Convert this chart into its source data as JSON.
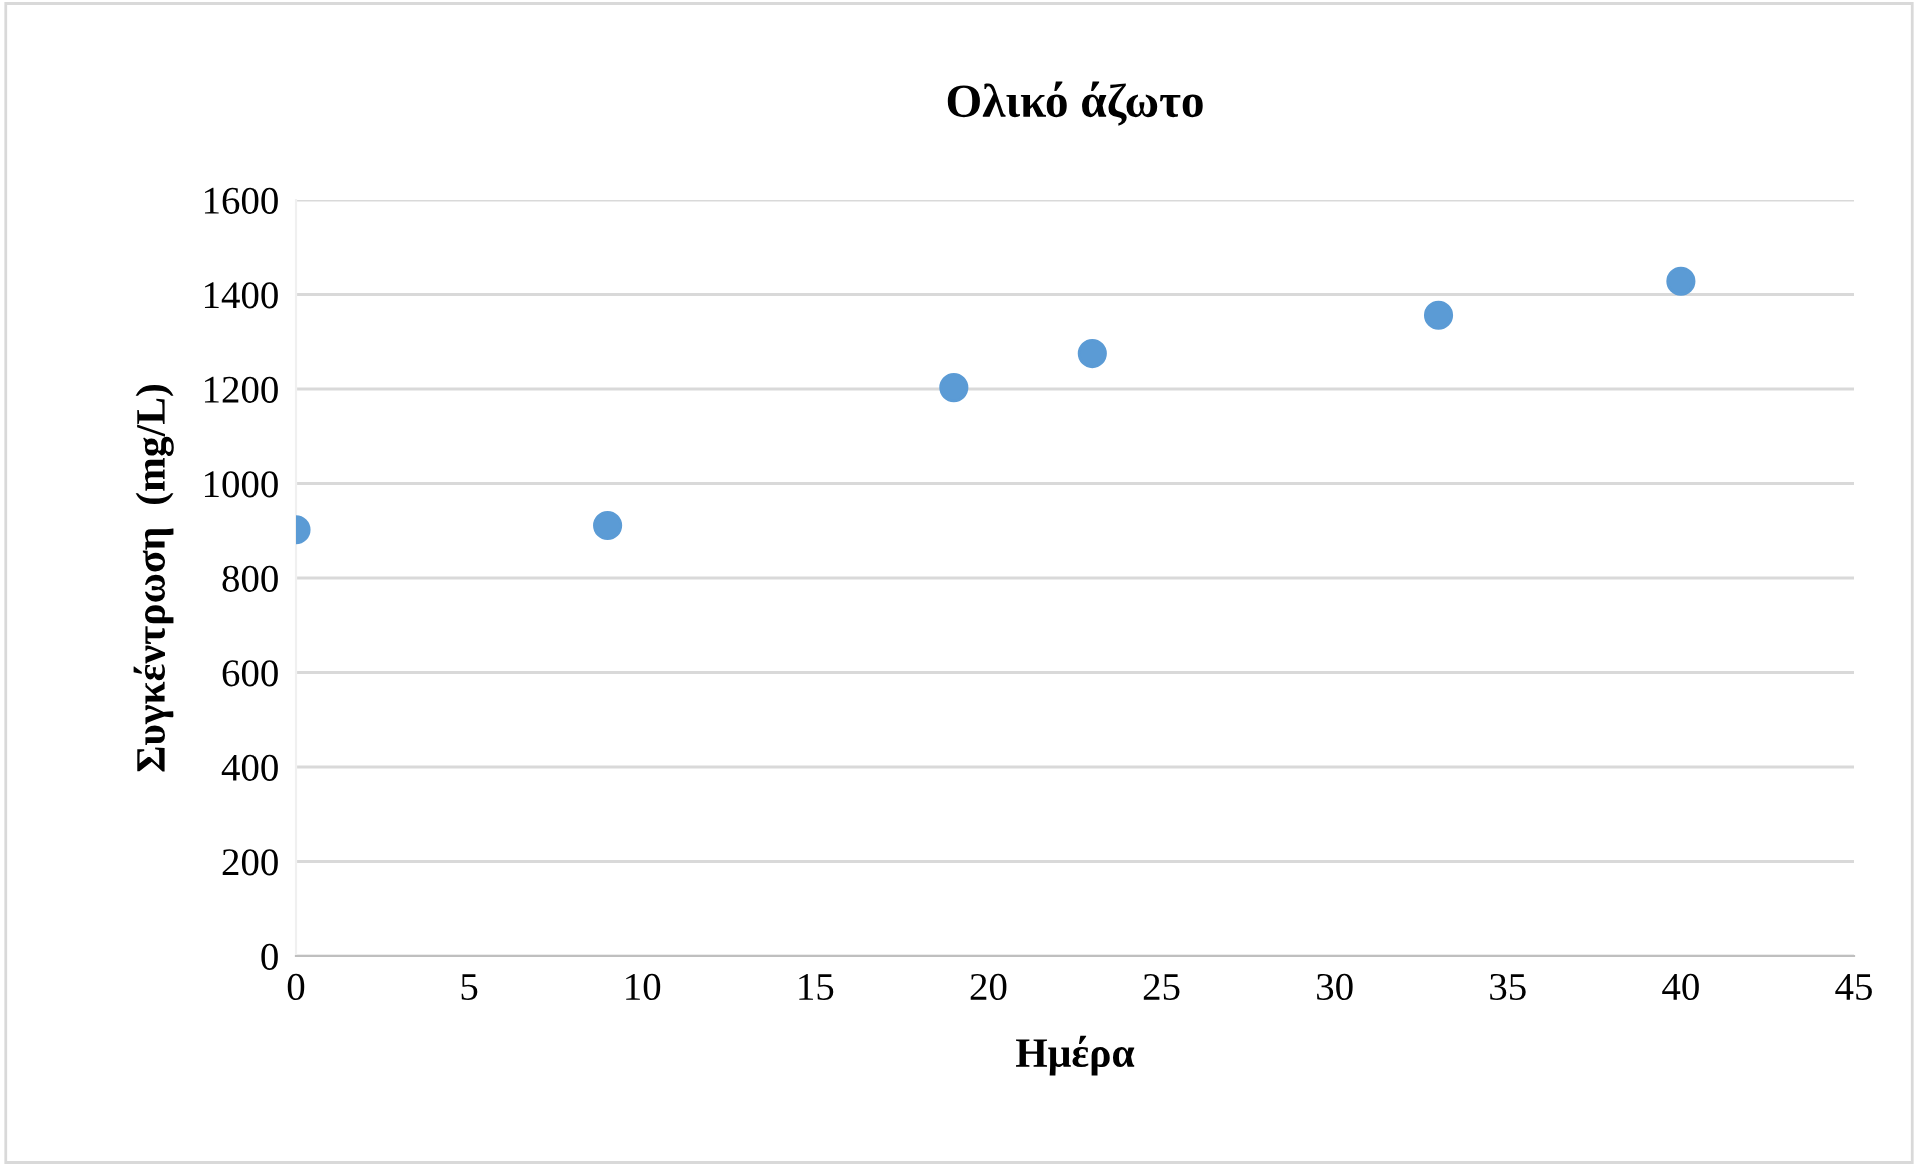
{
  "chart_data": {
    "type": "scatter",
    "title": "Ολικό άζωτο",
    "xlabel": "Ημέρα",
    "ylabel": "Συγκέντρωση  (mg/L)",
    "x": [
      0,
      9,
      19,
      23,
      33,
      40
    ],
    "series": [
      {
        "color": "#5b9bd5",
        "values": [
          902,
          911,
          1203,
          1275,
          1356,
          1428
        ]
      }
    ],
    "xlim": [
      0,
      45
    ],
    "xticks": [
      0,
      5,
      10,
      15,
      20,
      25,
      30,
      35,
      40,
      45
    ],
    "ylim": [
      0,
      1600
    ],
    "yticks": [
      0,
      200,
      400,
      600,
      800,
      1000,
      1200,
      1400,
      1600
    ],
    "grid": "y",
    "marker": "circle",
    "legend": false
  }
}
